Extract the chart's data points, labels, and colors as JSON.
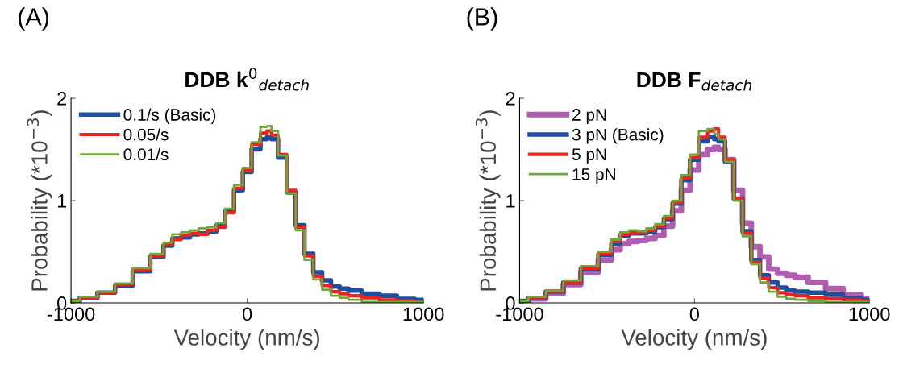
{
  "chart_data": [
    {
      "type": "step",
      "title": "DDB k$^{0}$$_{detach}$",
      "xlabel": "Velocity (nm/s)",
      "ylabel": "Probability (*10$^{−3}$)",
      "annotations": [
        "(A)"
      ],
      "x": [
        -1000,
        -900,
        -800,
        -700,
        -600,
        -500,
        -450,
        -400,
        -350,
        -300,
        -250,
        -200,
        -150,
        -100,
        -50,
        0,
        50,
        100,
        125,
        150,
        200,
        250,
        300,
        350,
        400,
        450,
        500,
        550,
        600,
        700,
        800,
        900,
        1000
      ],
      "xlim": [
        -1000,
        1000
      ],
      "xticks": [
        -1000,
        0,
        1000
      ],
      "ylim": [
        0,
        2
      ],
      "yticks": [
        0,
        1,
        2
      ],
      "legend": "top left",
      "grid": false,
      "series": [
        {
          "name": "0.1/s (Basic)",
          "color": "#1f4e9f",
          "values": [
            0.02,
            0.05,
            0.1,
            0.17,
            0.31,
            0.45,
            0.56,
            0.63,
            0.64,
            0.67,
            0.68,
            0.7,
            0.76,
            0.9,
            1.1,
            1.28,
            1.5,
            1.6,
            1.62,
            1.6,
            1.42,
            1.08,
            0.76,
            0.48,
            0.3,
            0.22,
            0.16,
            0.14,
            0.12,
            0.09,
            0.07,
            0.04,
            0.03
          ]
        },
        {
          "name": "0.05/s",
          "color": "#e8251f",
          "values": [
            0.02,
            0.05,
            0.1,
            0.18,
            0.32,
            0.46,
            0.57,
            0.62,
            0.66,
            0.68,
            0.67,
            0.71,
            0.74,
            0.88,
            1.12,
            1.3,
            1.55,
            1.66,
            1.68,
            1.64,
            1.45,
            1.1,
            0.74,
            0.46,
            0.26,
            0.17,
            0.11,
            0.09,
            0.07,
            0.05,
            0.03,
            0.02,
            0.01
          ]
        },
        {
          "name": "0.01/s",
          "color": "#6fa83a",
          "values": [
            0.02,
            0.06,
            0.11,
            0.19,
            0.34,
            0.48,
            0.59,
            0.67,
            0.69,
            0.71,
            0.73,
            0.74,
            0.78,
            0.92,
            1.15,
            1.32,
            1.57,
            1.72,
            1.73,
            1.68,
            1.44,
            1.07,
            0.71,
            0.42,
            0.23,
            0.13,
            0.07,
            0.05,
            0.03,
            0.01,
            0.01,
            0.01,
            0.01
          ]
        }
      ]
    },
    {
      "type": "step",
      "title": "DDB F$_{detach}$",
      "xlabel": "Velocity (nm/s)",
      "ylabel": "Probability (*10$^{−3}$)",
      "annotations": [
        "(B)"
      ],
      "x": [
        -1000,
        -900,
        -800,
        -700,
        -600,
        -500,
        -450,
        -400,
        -350,
        -300,
        -250,
        -200,
        -150,
        -100,
        -50,
        0,
        50,
        100,
        125,
        150,
        200,
        250,
        300,
        350,
        400,
        450,
        500,
        550,
        600,
        700,
        800,
        900,
        1000
      ],
      "xlim": [
        -1000,
        1000
      ],
      "xticks": [
        -1000,
        0,
        1000
      ],
      "ylim": [
        0,
        2
      ],
      "yticks": [
        0,
        1,
        2
      ],
      "legend": "top left",
      "grid": false,
      "series": [
        {
          "name": "2 pN",
          "color": "#b05fb0",
          "values": [
            0.01,
            0.04,
            0.09,
            0.18,
            0.3,
            0.42,
            0.52,
            0.58,
            0.6,
            0.61,
            0.63,
            0.66,
            0.75,
            0.9,
            1.1,
            1.3,
            1.45,
            1.5,
            1.52,
            1.5,
            1.4,
            1.1,
            0.78,
            0.55,
            0.45,
            0.33,
            0.29,
            0.27,
            0.25,
            0.2,
            0.14,
            0.08,
            0.04
          ]
        },
        {
          "name": "3 pN (Basic)",
          "color": "#1f4e9f",
          "values": [
            0.02,
            0.05,
            0.11,
            0.2,
            0.33,
            0.47,
            0.58,
            0.66,
            0.68,
            0.68,
            0.7,
            0.74,
            0.82,
            0.97,
            1.2,
            1.4,
            1.58,
            1.62,
            1.6,
            1.58,
            1.38,
            1.02,
            0.7,
            0.42,
            0.27,
            0.2,
            0.15,
            0.12,
            0.11,
            0.1,
            0.08,
            0.05,
            0.03
          ]
        },
        {
          "name": "5 pN",
          "color": "#e8251f",
          "values": [
            0.02,
            0.05,
            0.11,
            0.2,
            0.34,
            0.48,
            0.6,
            0.67,
            0.68,
            0.69,
            0.71,
            0.75,
            0.83,
            0.98,
            1.22,
            1.42,
            1.62,
            1.68,
            1.7,
            1.62,
            1.4,
            1.02,
            0.68,
            0.4,
            0.24,
            0.15,
            0.1,
            0.08,
            0.07,
            0.05,
            0.04,
            0.03,
            0.02
          ]
        },
        {
          "name": "15 pN",
          "color": "#6fa83a",
          "values": [
            0.02,
            0.06,
            0.12,
            0.22,
            0.36,
            0.5,
            0.62,
            0.69,
            0.71,
            0.7,
            0.73,
            0.77,
            0.85,
            1.0,
            1.25,
            1.45,
            1.68,
            1.7,
            1.65,
            1.6,
            1.38,
            1.0,
            0.65,
            0.38,
            0.2,
            0.11,
            0.06,
            0.04,
            0.03,
            0.02,
            0.01,
            0.01,
            0.01
          ]
        }
      ]
    }
  ]
}
